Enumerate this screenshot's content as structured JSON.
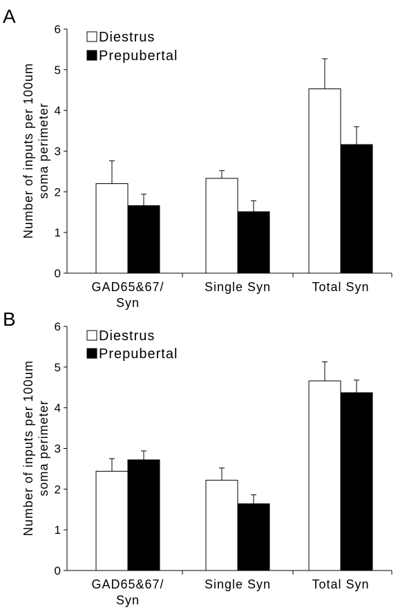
{
  "figure": {
    "panels": [
      {
        "letter": "A",
        "ylabel_line1": "Number of inputs per 100um",
        "ylabel_line2": "soma perimeter",
        "legend": {
          "diestrus": "Diestrus",
          "prepubertal": "Prepubertal"
        },
        "categories_line1": [
          "GAD65&67/",
          "Single Syn",
          "Total Syn"
        ],
        "categories_line2": [
          "Syn",
          "",
          ""
        ]
      },
      {
        "letter": "B",
        "ylabel_line1": "Number of inputs per 100um",
        "ylabel_line2": "soma perimeter",
        "legend": {
          "diestrus": "Diestrus",
          "prepubertal": "Prepubertal"
        },
        "categories_line1": [
          "GAD65&67/",
          "Single Syn",
          "Total Syn"
        ],
        "categories_line2": [
          "Syn",
          "",
          ""
        ]
      }
    ]
  },
  "chart_data": [
    {
      "type": "bar",
      "panel": "A",
      "categories": [
        "GAD65&67/Syn",
        "Single Syn",
        "Total Syn"
      ],
      "ylabel": "Number of inputs per 100um soma perimeter",
      "ylim": [
        0,
        6
      ],
      "yticks": [
        "0",
        "1",
        "2",
        "3",
        "4",
        "5",
        "6"
      ],
      "legend_position": "top-left",
      "series": [
        {
          "name": "Diestrus",
          "color": "#ffffff",
          "values": [
            2.2,
            2.33,
            4.53
          ],
          "errors": [
            0.56,
            0.19,
            0.74
          ]
        },
        {
          "name": "Prepubertal",
          "color": "#000000",
          "values": [
            1.66,
            1.51,
            3.16
          ],
          "errors": [
            0.28,
            0.27,
            0.44
          ]
        }
      ]
    },
    {
      "type": "bar",
      "panel": "B",
      "categories": [
        "GAD65&67/Syn",
        "Single Syn",
        "Total Syn"
      ],
      "ylabel": "Number of inputs per 100um soma perimeter",
      "ylim": [
        0,
        6
      ],
      "yticks": [
        "0",
        "1",
        "2",
        "3",
        "4",
        "5",
        "6"
      ],
      "legend_position": "top-left",
      "series": [
        {
          "name": "Diestrus",
          "color": "#ffffff",
          "values": [
            2.44,
            2.22,
            4.66
          ],
          "errors": [
            0.31,
            0.3,
            0.47
          ]
        },
        {
          "name": "Prepubertal",
          "color": "#000000",
          "values": [
            2.72,
            1.64,
            4.37
          ],
          "errors": [
            0.22,
            0.22,
            0.31
          ]
        }
      ]
    }
  ]
}
